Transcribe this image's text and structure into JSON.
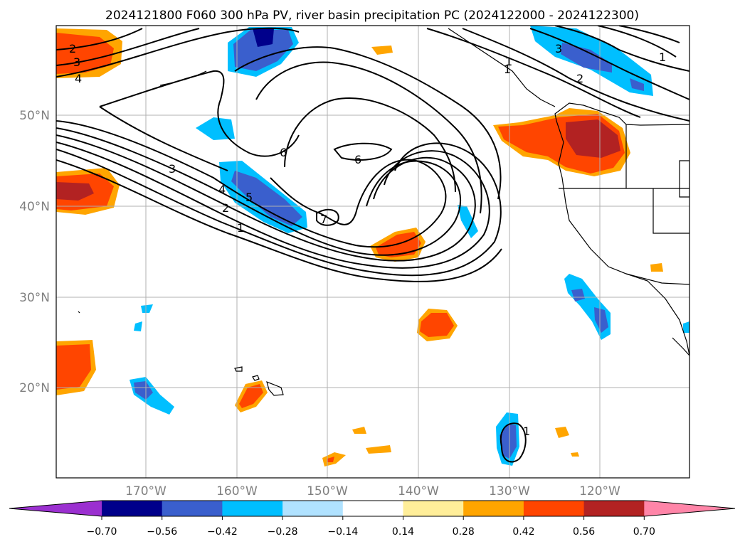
{
  "title": "2024121800 F060 300 hPa PV, river basin precipitation PC (2024122000 - 2024122300)",
  "lat_labels": [
    "50°N",
    "40°N",
    "30°N",
    "20°N"
  ],
  "lon_labels": [
    "170°W",
    "160°W",
    "150°W",
    "140°W",
    "130°W",
    "120°W"
  ],
  "colorbar": {
    "ticks": [
      "−0.70",
      "−0.56",
      "−0.42",
      "−0.28",
      "−0.14",
      "0.14",
      "0.28",
      "0.42",
      "0.56",
      "0.70"
    ],
    "colors": [
      "#9b30d0",
      "#00008b",
      "#3a5fcd",
      "#00bfff",
      "#b0e2ff",
      "#ffffff",
      "#ffee99",
      "#ffa500",
      "#ff4500",
      "#b22222",
      "#ff85a8"
    ]
  },
  "contour_labels": [
    "2",
    "3",
    "4",
    "6",
    "6",
    "3",
    "4",
    "5",
    "2",
    "1",
    "7",
    "1",
    "1",
    "2",
    "3",
    "1",
    "1"
  ]
}
